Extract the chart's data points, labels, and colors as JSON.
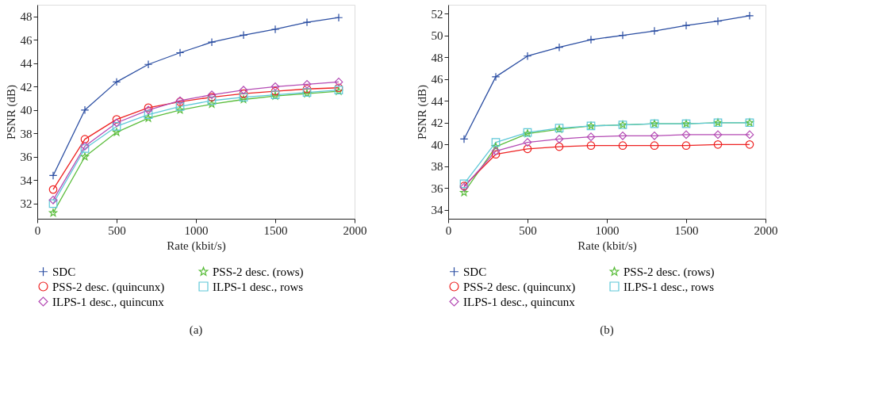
{
  "chart_data": [
    {
      "type": "line",
      "xlabel": "Rate (kbit/s)",
      "ylabel": "PSNR (dB)",
      "x": [
        100,
        300,
        500,
        700,
        900,
        1100,
        1300,
        1500,
        1700,
        1900
      ],
      "xlim": [
        0,
        2000
      ],
      "xticks": [
        0,
        500,
        1000,
        1500,
        2000
      ],
      "ylim": [
        30.7,
        49
      ],
      "yticks": [
        32,
        34,
        36,
        38,
        40,
        42,
        44,
        46,
        48
      ],
      "grid": false,
      "legend": "bottom",
      "annotations": [
        "(a)"
      ],
      "series": [
        {
          "name": "SDC",
          "color": "#2b4ea2",
          "marker": "cross",
          "values": [
            34.4,
            40.0,
            42.4,
            43.9,
            44.9,
            45.8,
            46.4,
            46.9,
            47.5,
            47.9
          ]
        },
        {
          "name": "PSS-2 desc. (rows)",
          "color": "#5bbd3c",
          "marker": "star",
          "values": [
            31.2,
            36.0,
            38.1,
            39.3,
            40.0,
            40.5,
            40.9,
            41.2,
            41.4,
            41.6
          ]
        },
        {
          "name": "PSS-2 desc. (quincunx)",
          "color": "#ee2222",
          "marker": "circle",
          "values": [
            33.2,
            37.5,
            39.2,
            40.2,
            40.7,
            41.1,
            41.4,
            41.6,
            41.8,
            41.9
          ]
        },
        {
          "name": "ILPS-1 desc., rows",
          "color": "#5ec8d8",
          "marker": "square",
          "values": [
            32.0,
            36.7,
            38.6,
            39.6,
            40.3,
            40.8,
            41.1,
            41.3,
            41.5,
            41.7
          ]
        },
        {
          "name": "ILPS-1 desc., quincunx",
          "color": "#b44bb4",
          "marker": "diamond",
          "values": [
            32.3,
            36.9,
            38.9,
            40.0,
            40.8,
            41.3,
            41.7,
            42.0,
            42.2,
            42.4
          ]
        }
      ]
    },
    {
      "type": "line",
      "xlabel": "Rate (kbit/s)",
      "ylabel": "PSNR (dB)",
      "x": [
        100,
        300,
        500,
        700,
        900,
        1100,
        1300,
        1500,
        1700,
        1900
      ],
      "xlim": [
        0,
        2000
      ],
      "xticks": [
        0,
        500,
        1000,
        1500,
        2000
      ],
      "ylim": [
        33.2,
        52.8
      ],
      "yticks": [
        34,
        36,
        38,
        40,
        42,
        44,
        46,
        48,
        50,
        52
      ],
      "grid": false,
      "legend": "bottom",
      "annotations": [
        "(b)"
      ],
      "series": [
        {
          "name": "SDC",
          "color": "#2b4ea2",
          "marker": "cross",
          "values": [
            40.5,
            46.2,
            48.1,
            48.9,
            49.6,
            50.0,
            50.4,
            50.9,
            51.3,
            51.8
          ]
        },
        {
          "name": "PSS-2 desc. (rows)",
          "color": "#5bbd3c",
          "marker": "star",
          "values": [
            35.6,
            39.8,
            41.0,
            41.4,
            41.7,
            41.8,
            41.9,
            41.9,
            42.0,
            42.0
          ]
        },
        {
          "name": "PSS-2 desc. (quincunx)",
          "color": "#ee2222",
          "marker": "circle",
          "values": [
            36.2,
            39.1,
            39.6,
            39.8,
            39.9,
            39.9,
            39.9,
            39.9,
            40.0,
            40.0
          ]
        },
        {
          "name": "ILPS-1 desc., rows",
          "color": "#5ec8d8",
          "marker": "square",
          "values": [
            36.4,
            40.2,
            41.1,
            41.5,
            41.7,
            41.8,
            41.9,
            41.9,
            42.0,
            42.0
          ]
        },
        {
          "name": "ILPS-1 desc., quincunx",
          "color": "#b44bb4",
          "marker": "diamond",
          "values": [
            36.1,
            39.4,
            40.2,
            40.5,
            40.7,
            40.8,
            40.8,
            40.9,
            40.9,
            40.9
          ]
        }
      ]
    }
  ]
}
